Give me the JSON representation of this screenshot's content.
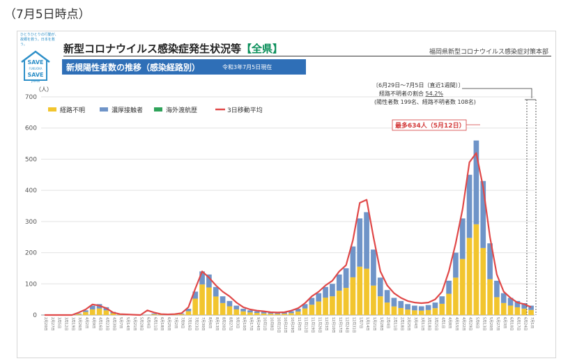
{
  "page": {
    "date_heading": "（7月5日時点）",
    "title_main": "新型コロナウイルス感染症発生状況等",
    "title_highlight": "【全県】",
    "department": "福岡県新型コロナウイルス感染症対策本部",
    "banner_title": "新規陽性者数の推移（感染経路別）",
    "banner_date": "令和3年7月5日現在",
    "logo": {
      "tagline1": "ひとりひとりの行動が、",
      "tagline2": "故郷を救う。日本を救う。",
      "save1": "SAVE",
      "sub1": "FUKUOKA",
      "save2": "SAVE",
      "sub2": "JAPAN",
      "icon": "house-icon",
      "color": "#2d8fc8"
    }
  },
  "chart_data": {
    "type": "bar",
    "stacked": true,
    "unit_label": "（人）",
    "ylim": [
      0,
      700
    ],
    "yticks": [
      0,
      100,
      200,
      300,
      400,
      500,
      600,
      700
    ],
    "grid": true,
    "legend_position": "top-left",
    "legend": [
      "経路不明",
      "濃厚接触者",
      "海外渡航歴",
      "3日移動平均"
    ],
    "colors": {
      "unknown": "#f2c52e",
      "close_contact": "#6f94c8",
      "overseas": "#2fa35a",
      "moving_avg": "#e04848"
    },
    "annotations": {
      "recent_week": "〔6月29日～7月5日（直近1週間）〕",
      "unknown_ratio_label": "経路不明者の割合",
      "unknown_ratio_value": "54.2%",
      "counts": "(陽性者数 199名、経路不明者数 108名)",
      "max_label": "最多634人（5月12日）"
    },
    "x_tick_labels": [
      "2月20日",
      "2月27日",
      "3月5日",
      "3月12日",
      "3月19日",
      "3月26日",
      "4月2日",
      "4月9日",
      "4月16日",
      "4月23日",
      "4月30日",
      "5月7日",
      "5月14日",
      "5月21日",
      "5月28日",
      "6月4日",
      "6月11日",
      "6月18日",
      "6月25日",
      "7月2日",
      "7月9日",
      "7月16日",
      "7月23日",
      "7月30日",
      "8月6日",
      "8月13日",
      "8月20日",
      "8月27日",
      "9月3日",
      "9月10日",
      "9月17日",
      "9月24日",
      "10月1日",
      "10月8日",
      "10月15日",
      "10月22日",
      "10月29日",
      "11月5日",
      "11月12日",
      "11月19日",
      "11月26日",
      "12月3日",
      "12月10日",
      "12月17日",
      "12月24日",
      "12月31日",
      "1月7日",
      "1月14日",
      "1月21日",
      "1月28日",
      "2月4日",
      "2月11日",
      "2月18日",
      "2月25日",
      "3月4日",
      "3月11日",
      "3月18日",
      "3月25日",
      "4月1日",
      "4月8日",
      "4月15日",
      "4月22日",
      "4月29日",
      "5月6日",
      "5月13日",
      "5月20日",
      "5月27日",
      "6月3日",
      "6月10日",
      "6月17日",
      "6月24日",
      "7月1日"
    ],
    "weekly_totals": [
      0,
      0,
      0,
      0,
      0,
      5,
      15,
      30,
      35,
      25,
      10,
      3,
      2,
      1,
      0,
      1,
      5,
      3,
      2,
      3,
      5,
      20,
      75,
      140,
      130,
      90,
      60,
      45,
      30,
      20,
      15,
      12,
      10,
      8,
      7,
      8,
      12,
      20,
      35,
      55,
      70,
      90,
      100,
      130,
      150,
      220,
      310,
      330,
      210,
      120,
      80,
      55,
      45,
      35,
      30,
      28,
      32,
      40,
      60,
      110,
      200,
      310,
      450,
      560,
      430,
      230,
      110,
      70,
      55,
      45,
      38,
      30
    ],
    "weekly_unknown_share": [
      0.5,
      0.5,
      0.5,
      0.5,
      0.5,
      0.6,
      0.65,
      0.6,
      0.6,
      0.6,
      0.55,
      0.5,
      0.5,
      0.5,
      0.5,
      0.5,
      0.5,
      0.5,
      0.5,
      0.5,
      0.55,
      0.6,
      0.7,
      0.7,
      0.68,
      0.66,
      0.64,
      0.62,
      0.6,
      0.58,
      0.55,
      0.55,
      0.5,
      0.5,
      0.5,
      0.5,
      0.5,
      0.55,
      0.6,
      0.6,
      0.62,
      0.62,
      0.6,
      0.6,
      0.58,
      0.55,
      0.5,
      0.45,
      0.45,
      0.5,
      0.5,
      0.5,
      0.5,
      0.5,
      0.5,
      0.5,
      0.5,
      0.55,
      0.6,
      0.62,
      0.6,
      0.58,
      0.55,
      0.52,
      0.5,
      0.5,
      0.52,
      0.55,
      0.55,
      0.55,
      0.54,
      0.54
    ],
    "moving_average": [
      0,
      0,
      0,
      0,
      0,
      8,
      18,
      34,
      30,
      22,
      8,
      3,
      2,
      1,
      0,
      15,
      8,
      3,
      2,
      3,
      6,
      25,
      85,
      140,
      120,
      95,
      75,
      60,
      40,
      25,
      18,
      14,
      12,
      9,
      8,
      9,
      14,
      22,
      38,
      60,
      75,
      95,
      110,
      140,
      160,
      240,
      360,
      370,
      250,
      140,
      95,
      70,
      55,
      45,
      40,
      38,
      40,
      50,
      75,
      140,
      230,
      340,
      490,
      520,
      410,
      250,
      130,
      75,
      55,
      40,
      35,
      25
    ]
  }
}
